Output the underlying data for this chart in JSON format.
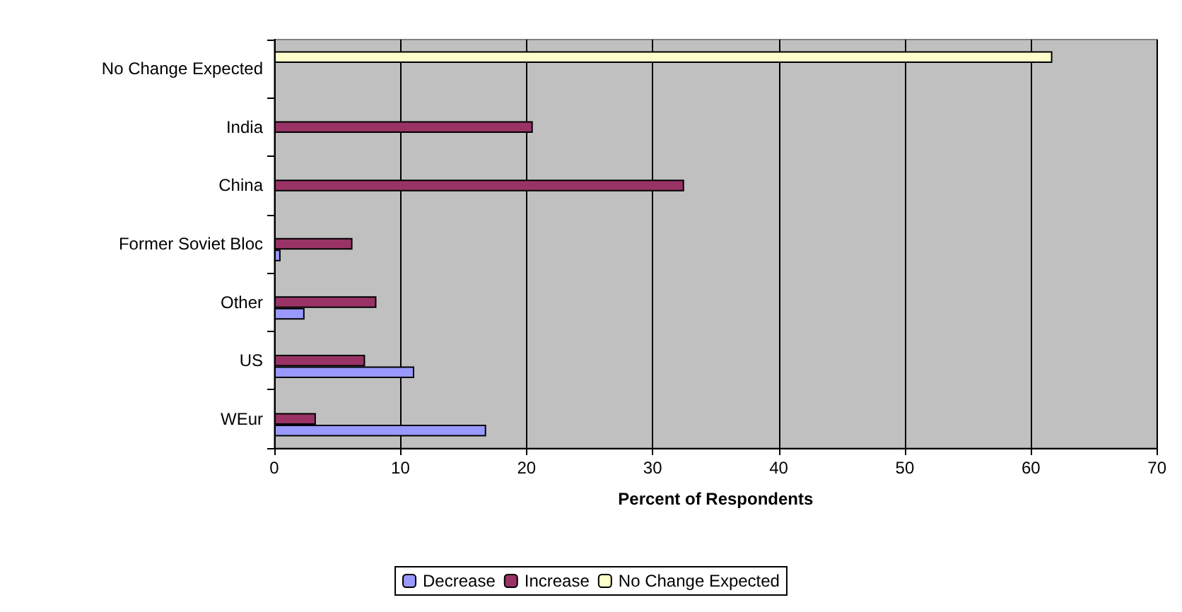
{
  "chart_data": {
    "type": "bar",
    "orientation": "horizontal",
    "xlabel": "Percent of Respondents",
    "categories": [
      "No Change Expected",
      "India",
      "China",
      "Former Soviet Bloc",
      "Other",
      "US",
      "WEur"
    ],
    "series": [
      {
        "name": "Decrease",
        "color": "#9999ff",
        "values": [
          null,
          null,
          null,
          0.5,
          2.4,
          11.1,
          16.8
        ]
      },
      {
        "name": "Increase",
        "color": "#993366",
        "values": [
          null,
          20.5,
          32.5,
          6.2,
          8.1,
          7.2,
          3.3
        ]
      },
      {
        "name": "No Change Expected",
        "color": "#ffffcc",
        "values": [
          61.7,
          null,
          null,
          null,
          null,
          null,
          null
        ]
      }
    ],
    "xlim": [
      0,
      70
    ],
    "xticks": [
      0,
      10,
      20,
      30,
      40,
      50,
      60,
      70
    ],
    "grid": "x",
    "legend": "bottom"
  }
}
